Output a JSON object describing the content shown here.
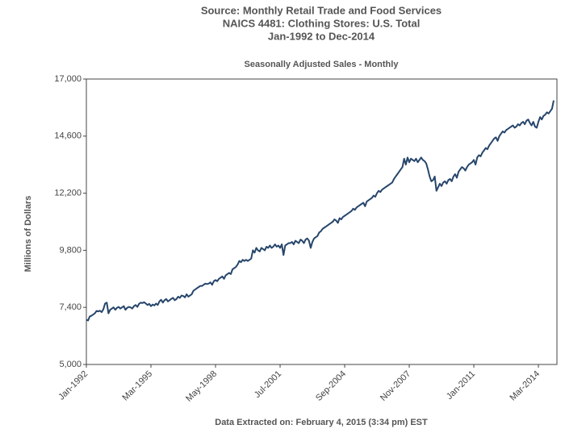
{
  "chart_data": {
    "type": "line",
    "title": [
      "Source: Monthly Retail Trade and Food Services",
      "NAICS 4481: Clothing Stores: U.S. Total",
      "Jan-1992 to Dec-2014"
    ],
    "subtitle": "Seasonally Adjusted Sales - Monthly",
    "y_label": "Millions of Dollars",
    "note": "Data Extracted on: February 4, 2015 (3:34 pm) EST",
    "color": "#27466b",
    "categories": [
      "Jan-1992",
      null,
      null,
      null,
      null,
      null,
      null,
      null,
      null,
      null,
      null,
      null,
      null,
      null,
      null,
      null,
      null,
      null,
      null,
      null,
      null,
      null,
      null,
      null,
      null,
      null,
      null,
      null,
      null,
      null,
      null,
      null,
      null,
      null,
      null,
      null,
      null,
      null,
      "Mar-1995",
      null,
      null,
      null,
      null,
      null,
      null,
      null,
      null,
      null,
      null,
      null,
      null,
      null,
      null,
      null,
      null,
      null,
      null,
      null,
      null,
      null,
      null,
      null,
      null,
      null,
      null,
      null,
      null,
      null,
      null,
      null,
      null,
      null,
      null,
      null,
      null,
      null,
      "May-1998",
      null,
      null,
      null,
      null,
      null,
      null,
      null,
      null,
      null,
      null,
      null,
      null,
      null,
      null,
      null,
      null,
      null,
      null,
      null,
      null,
      null,
      null,
      null,
      null,
      null,
      null,
      null,
      null,
      null,
      null,
      null,
      null,
      null,
      null,
      null,
      null,
      null,
      "Jul-2001",
      null,
      null,
      null,
      null,
      null,
      null,
      null,
      null,
      null,
      null,
      null,
      null,
      null,
      null,
      null,
      null,
      null,
      null,
      null,
      null,
      null,
      null,
      null,
      null,
      null,
      null,
      null,
      null,
      null,
      null,
      null,
      null,
      null,
      null,
      null,
      null,
      null,
      "Sep-2004",
      null,
      null,
      null,
      null,
      null,
      null,
      null,
      null,
      null,
      null,
      null,
      null,
      null,
      null,
      null,
      null,
      null,
      null,
      null,
      null,
      null,
      null,
      null,
      null,
      null,
      null,
      null,
      null,
      null,
      null,
      null,
      null,
      null,
      null,
      null,
      null,
      null,
      "Nov-2007",
      null,
      null,
      null,
      null,
      null,
      null,
      null,
      null,
      null,
      null,
      null,
      null,
      null,
      null,
      null,
      null,
      null,
      null,
      null,
      null,
      null,
      null,
      null,
      null,
      null,
      null,
      null,
      null,
      null,
      null,
      null,
      null,
      null,
      null,
      null,
      null,
      null,
      "Jan-2011",
      null,
      null,
      null,
      null,
      null,
      null,
      null,
      null,
      null,
      null,
      null,
      null,
      null,
      null,
      null,
      null,
      null,
      null,
      null,
      null,
      null,
      null,
      null,
      null,
      null,
      null,
      null,
      null,
      null,
      null,
      null,
      null,
      null,
      null,
      null,
      null,
      null,
      "Mar-2014",
      null,
      null,
      null,
      null,
      null,
      null,
      null,
      null,
      null
    ],
    "values": [
      6880,
      6850,
      7020,
      7050,
      7100,
      7150,
      7250,
      7230,
      7260,
      7200,
      7320,
      7560,
      7600,
      7150,
      7300,
      7350,
      7400,
      7300,
      7380,
      7420,
      7350,
      7400,
      7450,
      7300,
      7380,
      7420,
      7400,
      7350,
      7450,
      7500,
      7420,
      7550,
      7600,
      7580,
      7620,
      7560,
      7500,
      7550,
      7450,
      7520,
      7480,
      7560,
      7500,
      7650,
      7720,
      7600,
      7700,
      7750,
      7650,
      7700,
      7760,
      7800,
      7700,
      7750,
      7850,
      7800,
      7900,
      7880,
      7820,
      7950,
      7850,
      7900,
      7950,
      8100,
      8150,
      8200,
      8250,
      8300,
      8300,
      8350,
      8400,
      8380,
      8400,
      8450,
      8350,
      8500,
      8550,
      8500,
      8600,
      8650,
      8700,
      8600,
      8750,
      8800,
      8850,
      8800,
      9000,
      9050,
      9100,
      9200,
      9350,
      9300,
      9400,
      9350,
      9400,
      9350,
      9400,
      9450,
      9800,
      9700,
      9900,
      9800,
      9750,
      9900,
      9850,
      9800,
      9950,
      9900,
      10000,
      9900,
      9950,
      10050,
      9950,
      10000,
      9900,
      10050,
      9600,
      10000,
      10050,
      10100,
      10100,
      10150,
      10050,
      10200,
      10150,
      10100,
      10250,
      10200,
      10100,
      10250,
      10300,
      10200,
      9900,
      10150,
      10300,
      10350,
      10400,
      10550,
      10600,
      10700,
      10750,
      10800,
      10850,
      10900,
      10950,
      11000,
      11100,
      11050,
      10950,
      11150,
      11100,
      11200,
      11250,
      11300,
      11350,
      11400,
      11450,
      11550,
      11500,
      11600,
      11650,
      11700,
      11750,
      11800,
      11650,
      11850,
      11900,
      11950,
      12000,
      12100,
      12050,
      12200,
      12300,
      12250,
      12350,
      12400,
      12450,
      12500,
      12550,
      12600,
      12650,
      12800,
      12900,
      13000,
      13100,
      13200,
      13300,
      13650,
      13400,
      13700,
      13500,
      13650,
      13600,
      13550,
      13650,
      13500,
      13600,
      13700,
      13600,
      13550,
      13450,
      13200,
      12900,
      12700,
      12750,
      12900,
      12300,
      12450,
      12600,
      12500,
      12650,
      12700,
      12600,
      12750,
      12800,
      12700,
      12900,
      13000,
      12850,
      13100,
      13200,
      13300,
      13250,
      13150,
      13300,
      13400,
      13450,
      13500,
      13600,
      13400,
      13700,
      13800,
      13750,
      13900,
      14000,
      14100,
      14050,
      14200,
      14300,
      14400,
      14500,
      14550,
      14400,
      14600,
      14700,
      14800,
      14750,
      14850,
      14900,
      14950,
      15000,
      15050,
      14950,
      15000,
      15100,
      15050,
      15150,
      15200,
      15100,
      15250,
      15300,
      15150,
      15050,
      15200,
      15000,
      14950,
      15200,
      15400,
      15300,
      15450,
      15500,
      15600,
      15550,
      15650,
      15750,
      16100
    ],
    "ylim": [
      5000,
      17000
    ],
    "yticks": [
      {
        "value": 5000,
        "label": "5,000"
      },
      {
        "value": 7400,
        "label": "7,400"
      },
      {
        "value": 9800,
        "label": "9,800"
      },
      {
        "value": 12200,
        "label": "12,200"
      },
      {
        "value": 14600,
        "label": "14,600"
      },
      {
        "value": 17000,
        "label": "17,000"
      }
    ],
    "grid": false
  }
}
